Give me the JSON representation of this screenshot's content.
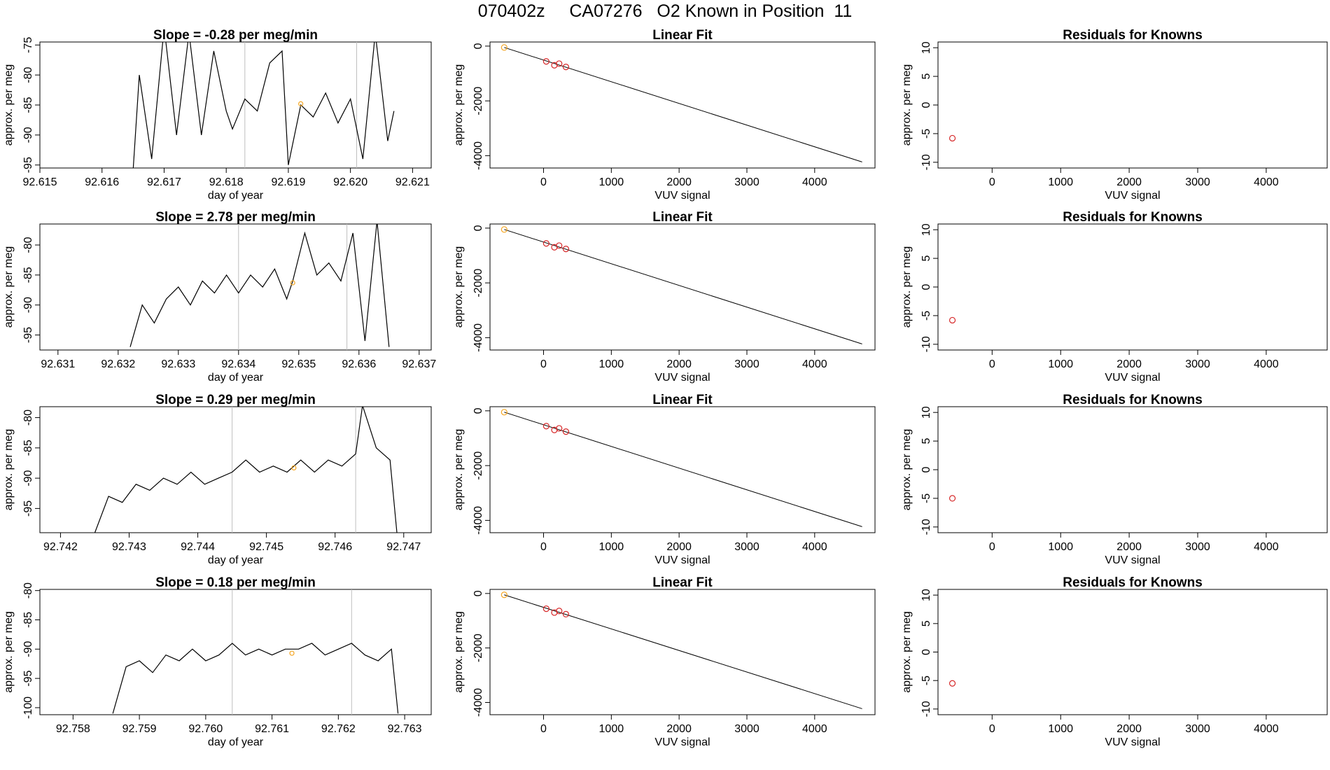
{
  "page": {
    "title": "070402z     CA07276   O2 Known in Position  11"
  },
  "colors": {
    "trace": "#000000",
    "vline": "#bfbfbf",
    "marker_orange": "#f5a623",
    "marker_red": "#d62728",
    "fit_line": "#000000"
  },
  "labels": {
    "time_xlabel": "day of year",
    "time_ylabel": "approx. per meg",
    "fit_title": "Linear Fit",
    "fit_xlabel": "VUV signal",
    "fit_ylabel": "approx. per meg",
    "resid_title": "Residuals for Knowns",
    "resid_xlabel": "VUV signal",
    "resid_ylabel": "approx. per meg"
  },
  "chart_data": [
    {
      "type": "line",
      "title": "Slope =  -0.28  per meg/min",
      "xlabel": "day of year",
      "ylabel": "approx. per meg",
      "xlim": [
        92.615,
        92.6213
      ],
      "ylim": [
        -95.5,
        -74.5
      ],
      "xticks": [
        "92.615",
        "92.616",
        "92.617",
        "92.618",
        "92.619",
        "92.620",
        "92.621"
      ],
      "yticks": [
        "-95",
        "-90",
        "-85",
        "-80",
        "-75"
      ],
      "vlines": [
        92.6183,
        92.6201
      ],
      "point": {
        "x": 92.6192,
        "y": -84.8
      },
      "x": [
        92.6165,
        92.6166,
        92.6168,
        92.617,
        92.6172,
        92.6174,
        92.6176,
        92.6178,
        92.618,
        92.6181,
        92.6183,
        92.6185,
        92.6187,
        92.6189,
        92.619,
        92.6192,
        92.6194,
        92.6196,
        92.6198,
        92.62,
        92.6202,
        92.6204,
        92.6206,
        92.6207
      ],
      "y": [
        -96,
        -80,
        -94,
        -72,
        -90,
        -73,
        -90,
        -76,
        -86,
        -89,
        -84,
        -86,
        -78,
        -76,
        -95,
        -85,
        -87,
        -83,
        -88,
        -84,
        -94,
        -73,
        -91,
        -86
      ]
    },
    {
      "type": "line",
      "title": "Slope =  2.78  per meg/min",
      "xlabel": "day of year",
      "ylabel": "approx. per meg",
      "xlim": [
        92.6307,
        92.6372
      ],
      "ylim": [
        -97.5,
        -76.5
      ],
      "xticks": [
        "92.631",
        "92.632",
        "92.633",
        "92.634",
        "92.635",
        "92.636",
        "92.637"
      ],
      "yticks": [
        "-95",
        "-90",
        "-85",
        "-80"
      ],
      "vlines": [
        92.634,
        92.6358
      ],
      "point": {
        "x": 92.6349,
        "y": -86.3
      },
      "x": [
        92.6322,
        92.6324,
        92.6326,
        92.6328,
        92.633,
        92.6332,
        92.6334,
        92.6336,
        92.6338,
        92.634,
        92.6342,
        92.6344,
        92.6346,
        92.6348,
        92.6349,
        92.6351,
        92.6353,
        92.6355,
        92.6357,
        92.6359,
        92.6361,
        92.6363,
        92.6365
      ],
      "y": [
        -97,
        -90,
        -93,
        -89,
        -87,
        -90,
        -86,
        -88,
        -85,
        -88,
        -85,
        -87,
        -84,
        -89,
        -86,
        -78,
        -85,
        -83,
        -86,
        -78,
        -96,
        -76,
        -97
      ]
    },
    {
      "type": "line",
      "title": "Slope =  0.29  per meg/min",
      "xlabel": "day of year",
      "ylabel": "approx. per meg",
      "xlim": [
        92.7417,
        92.7474
      ],
      "ylim": [
        -99,
        -78.2
      ],
      "xticks": [
        "92.742",
        "92.743",
        "92.744",
        "92.745",
        "92.746",
        "92.747"
      ],
      "yticks": [
        "-95",
        "-90",
        "-85",
        "-80"
      ],
      "vlines": [
        92.7445,
        92.7463
      ],
      "point": {
        "x": 92.7454,
        "y": -88.3
      },
      "x": [
        92.7425,
        92.7427,
        92.7429,
        92.7431,
        92.7433,
        92.7435,
        92.7437,
        92.7439,
        92.7441,
        92.7443,
        92.7445,
        92.7447,
        92.7449,
        92.7451,
        92.7453,
        92.7455,
        92.7457,
        92.7459,
        92.7461,
        92.7463,
        92.7464,
        92.7466,
        92.7468,
        92.7469
      ],
      "y": [
        -99,
        -93,
        -94,
        -91,
        -92,
        -90,
        -91,
        -89,
        -91,
        -90,
        -89,
        -87,
        -89,
        -88,
        -89,
        -87,
        -89,
        -87,
        -88,
        -86,
        -78,
        -85,
        -87,
        -99
      ]
    },
    {
      "type": "line",
      "title": "Slope =  0.18  per meg/min",
      "xlabel": "day of year",
      "ylabel": "approx. per meg",
      "xlim": [
        92.7575,
        92.7634
      ],
      "ylim": [
        -101.2,
        -79.8
      ],
      "xticks": [
        "92.758",
        "92.759",
        "92.760",
        "92.761",
        "92.762",
        "92.763"
      ],
      "yticks": [
        "-100",
        "-95",
        "-90",
        "-85",
        "-80"
      ],
      "vlines": [
        92.7604,
        92.7622
      ],
      "point": {
        "x": 92.7613,
        "y": -90.7
      },
      "x": [
        92.7586,
        92.7588,
        92.759,
        92.7592,
        92.7594,
        92.7596,
        92.7598,
        92.76,
        92.7602,
        92.7604,
        92.7606,
        92.7608,
        92.761,
        92.7612,
        92.7614,
        92.7616,
        92.7618,
        92.762,
        92.7622,
        92.7624,
        92.7626,
        92.7628,
        92.7629
      ],
      "y": [
        -101,
        -93,
        -92,
        -94,
        -91,
        -92,
        -90,
        -92,
        -91,
        -89,
        -91,
        -90,
        -91,
        -90,
        -90,
        -89,
        -91,
        -90,
        -89,
        -91,
        -92,
        -90,
        -101
      ]
    },
    {
      "type": "scatter",
      "title": "Linear Fit",
      "xlabel": "VUV signal",
      "ylabel": "approx. per meg",
      "xlim": [
        -790,
        4890
      ],
      "ylim": [
        -4450,
        150
      ],
      "xticks": [
        "0",
        "1000",
        "2000",
        "3000",
        "4000"
      ],
      "yticks": [
        "-4000",
        "-2000",
        "0"
      ],
      "fit_line": {
        "x": [
          -580,
          4700
        ],
        "y": [
          -50,
          -4230
        ]
      },
      "points": [
        {
          "x": -580,
          "y": -50
        },
        {
          "x": 40,
          "y": -560
        },
        {
          "x": 160,
          "y": -700
        },
        {
          "x": 230,
          "y": -640
        },
        {
          "x": 330,
          "y": -760
        }
      ]
    },
    {
      "type": "scatter",
      "title": "Linear Fit",
      "xlabel": "VUV signal",
      "ylabel": "approx. per meg",
      "xlim": [
        -790,
        4890
      ],
      "ylim": [
        -4450,
        150
      ],
      "xticks": [
        "0",
        "1000",
        "2000",
        "3000",
        "4000"
      ],
      "yticks": [
        "-4000",
        "-2000",
        "0"
      ],
      "fit_line": {
        "x": [
          -580,
          4700
        ],
        "y": [
          -50,
          -4230
        ]
      },
      "points": [
        {
          "x": -580,
          "y": -50
        },
        {
          "x": 40,
          "y": -560
        },
        {
          "x": 160,
          "y": -700
        },
        {
          "x": 230,
          "y": -640
        },
        {
          "x": 330,
          "y": -760
        }
      ]
    },
    {
      "type": "scatter",
      "title": "Linear Fit",
      "xlabel": "VUV signal",
      "ylabel": "approx. per meg",
      "xlim": [
        -790,
        4890
      ],
      "ylim": [
        -4450,
        150
      ],
      "xticks": [
        "0",
        "1000",
        "2000",
        "3000",
        "4000"
      ],
      "yticks": [
        "-4000",
        "-2000",
        "0"
      ],
      "fit_line": {
        "x": [
          -580,
          4700
        ],
        "y": [
          -50,
          -4230
        ]
      },
      "points": [
        {
          "x": -580,
          "y": -50
        },
        {
          "x": 40,
          "y": -560
        },
        {
          "x": 160,
          "y": -700
        },
        {
          "x": 230,
          "y": -640
        },
        {
          "x": 330,
          "y": -760
        }
      ]
    },
    {
      "type": "scatter",
      "title": "Linear Fit",
      "xlabel": "VUV signal",
      "ylabel": "approx. per meg",
      "xlim": [
        -790,
        4890
      ],
      "ylim": [
        -4450,
        150
      ],
      "xticks": [
        "0",
        "1000",
        "2000",
        "3000",
        "4000"
      ],
      "yticks": [
        "-4000",
        "-2000",
        "0"
      ],
      "fit_line": {
        "x": [
          -580,
          4700
        ],
        "y": [
          -50,
          -4230
        ]
      },
      "points": [
        {
          "x": -580,
          "y": -50
        },
        {
          "x": 40,
          "y": -560
        },
        {
          "x": 160,
          "y": -700
        },
        {
          "x": 230,
          "y": -640
        },
        {
          "x": 330,
          "y": -760
        }
      ]
    },
    {
      "type": "scatter",
      "title": "Residuals for Knowns",
      "xlabel": "VUV signal",
      "ylabel": "approx. per meg",
      "xlim": [
        -790,
        4890
      ],
      "ylim": [
        -11,
        11
      ],
      "xticks": [
        "0",
        "1000",
        "2000",
        "3000",
        "4000"
      ],
      "yticks": [
        "-10",
        "-5",
        "0",
        "5",
        "10"
      ],
      "points": [
        {
          "x": -580,
          "y": -5.8
        }
      ]
    },
    {
      "type": "scatter",
      "title": "Residuals for Knowns",
      "xlabel": "VUV signal",
      "ylabel": "approx. per meg",
      "xlim": [
        -790,
        4890
      ],
      "ylim": [
        -11,
        11
      ],
      "xticks": [
        "0",
        "1000",
        "2000",
        "3000",
        "4000"
      ],
      "yticks": [
        "-10",
        "-5",
        "0",
        "5",
        "10"
      ],
      "points": [
        {
          "x": -580,
          "y": -5.8
        }
      ]
    },
    {
      "type": "scatter",
      "title": "Residuals for Knowns",
      "xlabel": "VUV signal",
      "ylabel": "approx. per meg",
      "xlim": [
        -790,
        4890
      ],
      "ylim": [
        -11,
        11
      ],
      "xticks": [
        "0",
        "1000",
        "2000",
        "3000",
        "4000"
      ],
      "yticks": [
        "-10",
        "-5",
        "0",
        "5",
        "10"
      ],
      "points": [
        {
          "x": -580,
          "y": -5.0
        }
      ]
    },
    {
      "type": "scatter",
      "title": "Residuals for Knowns",
      "xlabel": "VUV signal",
      "ylabel": "approx. per meg",
      "xlim": [
        -790,
        4890
      ],
      "ylim": [
        -11,
        11
      ],
      "xticks": [
        "0",
        "1000",
        "2000",
        "3000",
        "4000"
      ],
      "yticks": [
        "-10",
        "-5",
        "0",
        "5",
        "10"
      ],
      "points": [
        {
          "x": -580,
          "y": -5.5
        }
      ]
    }
  ]
}
